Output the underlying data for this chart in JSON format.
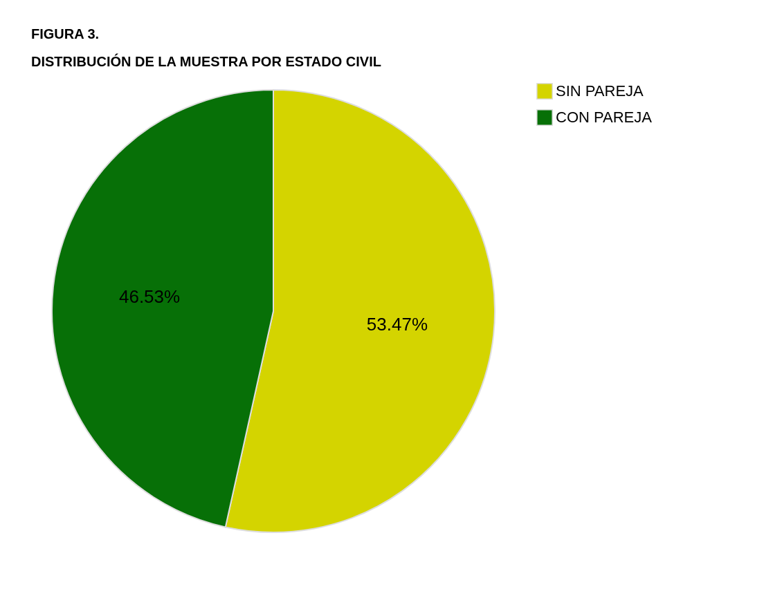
{
  "chart_data": {
    "type": "pie",
    "title": "FIGURA 3.",
    "subtitle": "DISTRIBUCIÓN DE LA MUESTRA POR ESTADO CIVIL",
    "categories": [
      "SIN PAREJA",
      "CON PAREJA"
    ],
    "values": [
      53.47,
      46.53
    ],
    "colors": [
      "#d4d400",
      "#077007"
    ],
    "value_labels": [
      "53.47%",
      "46.53%"
    ],
    "legend": "right"
  }
}
